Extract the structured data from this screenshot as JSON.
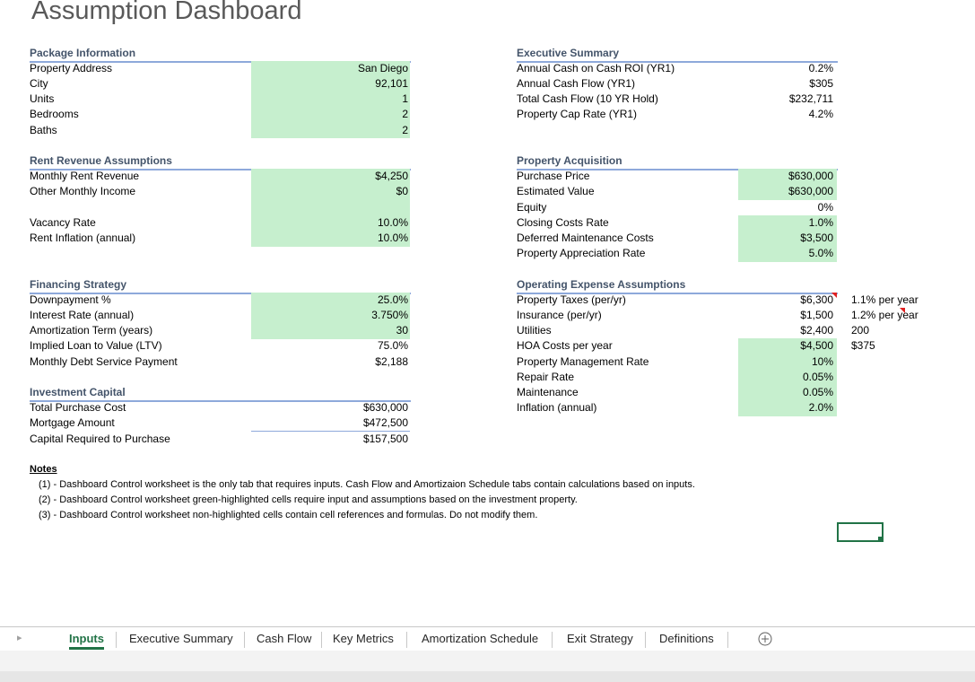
{
  "title": "Assumption Dashboard",
  "left_sections": [
    {
      "title": "Package Information",
      "rows": [
        {
          "label": "Property Address",
          "value": "San Diego",
          "input": true
        },
        {
          "label": "City",
          "value": "92,101",
          "input": true
        },
        {
          "label": "Units",
          "value": "1",
          "input": true
        },
        {
          "label": "Bedrooms",
          "value": "2",
          "input": true
        },
        {
          "label": "Baths",
          "value": "2",
          "input": true
        }
      ]
    },
    {
      "title": "Rent Revenue Assumptions",
      "rows": [
        {
          "label": "Monthly Rent Revenue",
          "value": "$4,250",
          "input": true
        },
        {
          "label": "Other Monthly Income",
          "value": "$0",
          "input": true
        },
        {
          "label": "Vacancy Rate",
          "value": "10.0%",
          "input": true
        },
        {
          "label": "Rent Inflation (annual)",
          "value": "10.0%",
          "input": true
        }
      ]
    },
    {
      "title": "Financing Strategy",
      "rows": [
        {
          "label": "Downpayment %",
          "value": "25.0%",
          "input": true
        },
        {
          "label": "Interest Rate (annual)",
          "value": "3.750%",
          "input": true
        },
        {
          "label": "Amortization Term (years)",
          "value": "30",
          "input": true
        },
        {
          "label": "Implied Loan to Value (LTV)",
          "value": "75.0%",
          "input": false
        },
        {
          "label": "Monthly Debt Service Payment",
          "value": "$2,188",
          "input": false
        }
      ]
    },
    {
      "title": "Investment Capital",
      "rows": [
        {
          "label": "Total Purchase Cost",
          "value": "$630,000",
          "input": false
        },
        {
          "label": "Mortgage Amount",
          "value": "$472,500",
          "input": false
        },
        {
          "label": "Capital Required to Purchase",
          "value": "$157,500",
          "input": false,
          "border_top": true
        }
      ]
    }
  ],
  "right_sections": [
    {
      "title": "Executive Summary",
      "rows": [
        {
          "label": "Annual Cash on Cash ROI (YR1)",
          "value": "0.2%",
          "input": false
        },
        {
          "label": "Annual Cash Flow (YR1)",
          "value": "$305",
          "input": false
        },
        {
          "label": "Total Cash Flow (10 YR Hold)",
          "value": "$232,711",
          "input": false
        },
        {
          "label": "Property Cap Rate (YR1)",
          "value": "4.2%",
          "input": false
        }
      ]
    },
    {
      "title": "Property Acquisition",
      "rows": [
        {
          "label": "Purchase Price",
          "value": "$630,000",
          "input": true
        },
        {
          "label": "Estimated Value",
          "value": "$630,000",
          "input": true
        },
        {
          "label": "Equity",
          "value": "0%",
          "input": false
        },
        {
          "label": "Closing Costs Rate",
          "value": "1.0%",
          "input": true
        },
        {
          "label": "Deferred Maintenance Costs",
          "value": "$3,500",
          "input": true
        },
        {
          "label": "Property Appreciation Rate",
          "value": "5.0%",
          "input": true
        }
      ]
    },
    {
      "title": "Operating Expense Assumptions",
      "rows": [
        {
          "label": "Property Taxes (per/yr)",
          "value": "$6,300",
          "input": false,
          "note": "1.1% per year"
        },
        {
          "label": "Insurance (per/yr)",
          "value": "$1,500",
          "input": false,
          "note": "1.2% per year"
        },
        {
          "label": "Utilities",
          "value": "$2,400",
          "input": false,
          "note": "200"
        },
        {
          "label": "HOA Costs per year",
          "value": "$4,500",
          "input": true,
          "note": "$375"
        },
        {
          "label": "Property Management Rate",
          "value": "10%",
          "input": true
        },
        {
          "label": "Repair Rate",
          "value": "0.05%",
          "input": true
        },
        {
          "label": "Maintenance",
          "value": "0.05%",
          "input": true
        },
        {
          "label": "Inflation (annual)",
          "value": "2.0%",
          "input": true
        }
      ]
    }
  ],
  "notes": {
    "title": "Notes",
    "items": [
      "(1) - Dashboard Control worksheet is the only tab that requires inputs. Cash Flow and Amortizaion Schedule tabs contain calculations based on inputs.",
      "(2) - Dashboard Control worksheet green-highlighted cells require input and assumptions based on the investment property.",
      "(3) - Dashboard Control worksheet non-highlighted cells contain cell references and formulas. Do not modify them."
    ]
  },
  "tabs": {
    "items": [
      "Inputs",
      "Executive Summary",
      "Cash Flow",
      "Key Metrics",
      "Amortization Schedule",
      "Exit Strategy",
      "Definitions"
    ],
    "active": 0
  }
}
